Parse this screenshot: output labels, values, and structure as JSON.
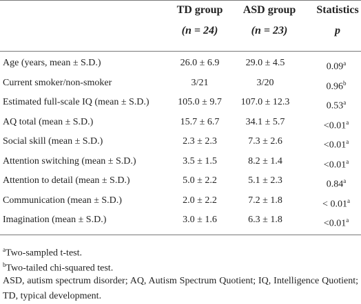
{
  "table": {
    "headers": [
      {
        "title": "TD group",
        "n": "(n = 24)"
      },
      {
        "title": "ASD group",
        "n": "(n = 23)"
      },
      {
        "title": "Statistics",
        "n": "p"
      }
    ],
    "rows": [
      {
        "label": "Age (years, mean ± S.D.)",
        "td": "26.0 ± 6.9",
        "asd": "29.0 ± 4.5",
        "p": "0.09",
        "note": "a"
      },
      {
        "label": "Current smoker/non-smoker",
        "td": "3/21",
        "asd": "3/20",
        "p": "0.96",
        "note": "b"
      },
      {
        "label": "Estimated full-scale IQ (mean ± S.D.)",
        "td": "105.0 ± 9.7",
        "asd": "107.0 ± 12.3",
        "p": "0.53",
        "note": "a"
      },
      {
        "label": "AQ total (mean ± S.D.)",
        "td": "15.7 ± 6.7",
        "asd": "34.1 ± 5.7",
        "p": "<0.01",
        "note": "a"
      },
      {
        "label": "Social skill (mean ± S.D.)",
        "td": "2.3 ± 2.3",
        "asd": "7.3 ± 2.6",
        "p": "<0.01",
        "note": "a"
      },
      {
        "label": "Attention switching (mean ± S.D.)",
        "td": "3.5 ± 1.5",
        "asd": "8.2 ± 1.4",
        "p": "<0.01",
        "note": "a"
      },
      {
        "label": "Attention to detail (mean ± S.D.)",
        "td": "5.0 ± 2.2",
        "asd": "5.1 ± 2.3",
        "p": "0.84",
        "note": "a"
      },
      {
        "label": "Communication (mean ± S.D.)",
        "td": "2.0 ± 2.2",
        "asd": "7.2 ± 1.8",
        "p": "< 0.01",
        "note": "a"
      },
      {
        "label": "Imagination (mean ± S.D.)",
        "td": "3.0 ± 1.6",
        "asd": "6.3 ± 1.8",
        "p": "<0.01",
        "note": "a"
      }
    ]
  },
  "footnotes": [
    {
      "mark": "a",
      "text": "Two-sampled t-test."
    },
    {
      "mark": "b",
      "text": "Two-tailed chi-squared test."
    }
  ],
  "abbreviations": "ASD, autism spectrum disorder; AQ, Autism Spectrum Quotient; IQ, Intelligence Quotient; TD, typical development."
}
